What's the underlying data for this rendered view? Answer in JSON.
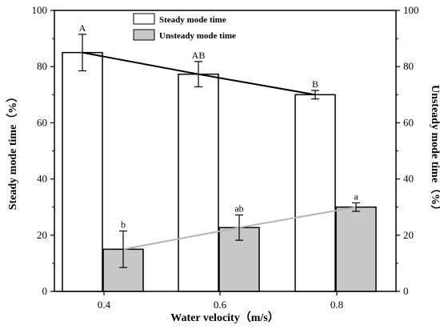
{
  "chart_data": {
    "type": "bar",
    "categories": [
      "0.4",
      "0.6",
      "0.8"
    ],
    "xlabel": "Water velocity（m/s）",
    "ylabel_left": "Steady mode time（%）",
    "ylabel_right": "Unsteady mode time（%）",
    "ylim": [
      0,
      100
    ],
    "yticks": [
      "0",
      "20",
      "40",
      "60",
      "80",
      "100"
    ],
    "series": [
      {
        "name": "Steady mode time",
        "values": [
          85,
          77.3,
          70
        ],
        "errors": [
          6.5,
          4.5,
          1.5
        ],
        "significance": [
          "A",
          "AB",
          "B"
        ],
        "fill": "#ffffff",
        "trend_color": "#000000"
      },
      {
        "name": "Unsteady mode time",
        "values": [
          15,
          22.7,
          30
        ],
        "errors": [
          6.5,
          4.5,
          1.5
        ],
        "significance": [
          "b",
          "ab",
          "a"
        ],
        "fill": "#c8c8c8",
        "trend_color": "#b4b4b4"
      }
    ]
  }
}
